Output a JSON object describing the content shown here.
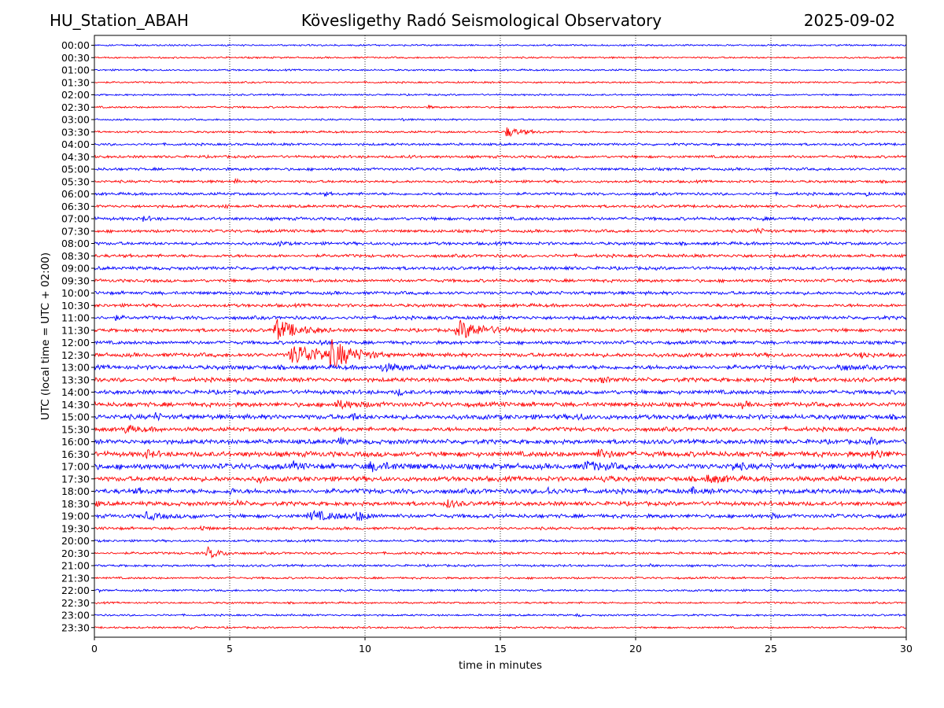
{
  "header": {
    "station": "HU_Station_ABAH",
    "observatory": "Kövesligethy Radó Seismological Observatory",
    "date": "2025-09-02"
  },
  "chart_data": {
    "type": "line",
    "xlabel": "time in minutes",
    "ylabel": "UTC (local time = UTC + 02:00)",
    "xlim": [
      0,
      30
    ],
    "xticks": [
      0,
      5,
      10,
      15,
      20,
      25,
      30
    ],
    "grid": "vertical dotted lines at each x tick",
    "colors": {
      "even_trace": "#0000ff",
      "odd_trace": "#ff0000",
      "axis": "#000000"
    },
    "traces": [
      {
        "label": "00:00",
        "color": "#0000ff",
        "noise": 1.0,
        "events": []
      },
      {
        "label": "00:30",
        "color": "#ff0000",
        "noise": 1.0,
        "events": []
      },
      {
        "label": "01:00",
        "color": "#0000ff",
        "noise": 1.0,
        "events": []
      },
      {
        "label": "01:30",
        "color": "#ff0000",
        "noise": 1.0,
        "events": []
      },
      {
        "label": "02:00",
        "color": "#0000ff",
        "noise": 1.0,
        "events": []
      },
      {
        "label": "02:30",
        "color": "#ff0000",
        "noise": 1.1,
        "events": [
          {
            "t": 12.3,
            "amp": 2,
            "dur": 0.4
          }
        ]
      },
      {
        "label": "03:00",
        "color": "#0000ff",
        "noise": 1.0,
        "events": [
          {
            "t": 11.3,
            "amp": 2,
            "dur": 0.3
          }
        ]
      },
      {
        "label": "03:30",
        "color": "#ff0000",
        "noise": 1.2,
        "events": [
          {
            "t": 15.1,
            "amp": 6,
            "dur": 1.6
          }
        ]
      },
      {
        "label": "04:00",
        "color": "#0000ff",
        "noise": 1.4,
        "events": []
      },
      {
        "label": "04:30",
        "color": "#ff0000",
        "noise": 1.5,
        "events": [
          {
            "t": 11.6,
            "amp": 3,
            "dur": 0.3
          }
        ]
      },
      {
        "label": "05:00",
        "color": "#0000ff",
        "noise": 1.6,
        "events": []
      },
      {
        "label": "05:30",
        "color": "#ff0000",
        "noise": 1.5,
        "events": [
          {
            "t": 5.2,
            "amp": 4,
            "dur": 0.2
          }
        ]
      },
      {
        "label": "06:00",
        "color": "#0000ff",
        "noise": 1.6,
        "events": [
          {
            "t": 8.5,
            "amp": 3,
            "dur": 0.3
          },
          {
            "t": 28.5,
            "amp": 3,
            "dur": 0.2
          }
        ]
      },
      {
        "label": "06:30",
        "color": "#ff0000",
        "noise": 1.6,
        "events": [
          {
            "t": 4.8,
            "amp": 3,
            "dur": 0.3
          }
        ]
      },
      {
        "label": "07:00",
        "color": "#0000ff",
        "noise": 1.8,
        "events": [
          {
            "t": 1.7,
            "amp": 3,
            "dur": 0.8
          },
          {
            "t": 24.6,
            "amp": 3,
            "dur": 0.3
          }
        ]
      },
      {
        "label": "07:30",
        "color": "#ff0000",
        "noise": 1.7,
        "events": [
          {
            "t": 24.3,
            "amp": 3,
            "dur": 1.0
          }
        ]
      },
      {
        "label": "08:00",
        "color": "#0000ff",
        "noise": 1.8,
        "events": [
          {
            "t": 6.8,
            "amp": 4,
            "dur": 0.4
          },
          {
            "t": 11.0,
            "amp": 3,
            "dur": 0.2
          }
        ]
      },
      {
        "label": "08:30",
        "color": "#ff0000",
        "noise": 1.8,
        "events": [
          {
            "t": 23.8,
            "amp": 3,
            "dur": 0.3
          }
        ]
      },
      {
        "label": "09:00",
        "color": "#0000ff",
        "noise": 1.9,
        "events": [
          {
            "t": 17.3,
            "amp": 3,
            "dur": 0.3
          }
        ]
      },
      {
        "label": "09:30",
        "color": "#ff0000",
        "noise": 1.8,
        "events": []
      },
      {
        "label": "10:00",
        "color": "#0000ff",
        "noise": 1.9,
        "events": []
      },
      {
        "label": "10:30",
        "color": "#ff0000",
        "noise": 1.9,
        "events": []
      },
      {
        "label": "11:00",
        "color": "#0000ff",
        "noise": 2.0,
        "events": [
          {
            "t": 0.7,
            "amp": 3,
            "dur": 0.5
          }
        ]
      },
      {
        "label": "11:30",
        "color": "#ff0000",
        "noise": 2.0,
        "events": [
          {
            "t": 6.55,
            "amp": 13,
            "dur": 2.2
          },
          {
            "t": 13.3,
            "amp": 11,
            "dur": 2.6
          }
        ]
      },
      {
        "label": "12:00",
        "color": "#0000ff",
        "noise": 2.0,
        "events": [
          {
            "t": 8.3,
            "amp": 3,
            "dur": 0.6
          }
        ]
      },
      {
        "label": "12:30",
        "color": "#ff0000",
        "noise": 2.3,
        "events": [
          {
            "t": 7.1,
            "amp": 12,
            "dur": 3.8
          },
          {
            "t": 8.65,
            "amp": 15,
            "dur": 1.8
          },
          {
            "t": 28.3,
            "amp": 4,
            "dur": 0.6
          }
        ]
      },
      {
        "label": "13:00",
        "color": "#0000ff",
        "noise": 2.5,
        "events": [
          {
            "t": 10.5,
            "amp": 4,
            "dur": 2.0
          },
          {
            "t": 27.4,
            "amp": 4,
            "dur": 1.0
          }
        ]
      },
      {
        "label": "13:30",
        "color": "#ff0000",
        "noise": 2.4,
        "events": [
          {
            "t": 2.5,
            "amp": 4,
            "dur": 0.3
          },
          {
            "t": 18.7,
            "amp": 4,
            "dur": 0.6
          },
          {
            "t": 25.8,
            "amp": 4,
            "dur": 0.3
          }
        ]
      },
      {
        "label": "14:00",
        "color": "#0000ff",
        "noise": 2.4,
        "events": [
          {
            "t": 11.2,
            "amp": 4,
            "dur": 0.4
          }
        ]
      },
      {
        "label": "14:30",
        "color": "#ff0000",
        "noise": 2.6,
        "events": [
          {
            "t": 8.8,
            "amp": 4,
            "dur": 2.2
          },
          {
            "t": 23.9,
            "amp": 3,
            "dur": 0.6
          }
        ]
      },
      {
        "label": "15:00",
        "color": "#0000ff",
        "noise": 2.8,
        "events": [
          {
            "t": 2.2,
            "amp": 5,
            "dur": 0.4
          },
          {
            "t": 9.5,
            "amp": 5,
            "dur": 0.4
          },
          {
            "t": 17.8,
            "amp": 4,
            "dur": 0.6
          }
        ]
      },
      {
        "label": "15:30",
        "color": "#ff0000",
        "noise": 2.4,
        "events": [
          {
            "t": 1.0,
            "amp": 4,
            "dur": 1.5
          }
        ]
      },
      {
        "label": "16:00",
        "color": "#0000ff",
        "noise": 2.6,
        "events": [
          {
            "t": 9.0,
            "amp": 7,
            "dur": 0.4
          },
          {
            "t": 28.6,
            "amp": 4,
            "dur": 0.6
          }
        ]
      },
      {
        "label": "16:30",
        "color": "#ff0000",
        "noise": 3.0,
        "events": [
          {
            "t": 1.8,
            "amp": 5,
            "dur": 0.8
          },
          {
            "t": 18.5,
            "amp": 4,
            "dur": 1.5
          },
          {
            "t": 28.7,
            "amp": 6,
            "dur": 1.0
          }
        ]
      },
      {
        "label": "17:00",
        "color": "#0000ff",
        "noise": 3.2,
        "events": [
          {
            "t": 7.3,
            "amp": 4,
            "dur": 0.6
          },
          {
            "t": 10.0,
            "amp": 4,
            "dur": 2.5
          },
          {
            "t": 18.0,
            "amp": 5,
            "dur": 2.0
          },
          {
            "t": 23.5,
            "amp": 4,
            "dur": 1.0
          }
        ]
      },
      {
        "label": "17:30",
        "color": "#ff0000",
        "noise": 2.8,
        "events": [
          {
            "t": 6.0,
            "amp": 4,
            "dur": 0.6
          },
          {
            "t": 18.8,
            "amp": 4,
            "dur": 0.6
          },
          {
            "t": 22.5,
            "amp": 4,
            "dur": 2.0
          }
        ]
      },
      {
        "label": "18:00",
        "color": "#0000ff",
        "noise": 2.8,
        "events": [
          {
            "t": 1.5,
            "amp": 3,
            "dur": 0.6
          },
          {
            "t": 5.0,
            "amp": 4,
            "dur": 0.3
          },
          {
            "t": 16.7,
            "amp": 5,
            "dur": 0.6
          },
          {
            "t": 22.0,
            "amp": 4,
            "dur": 0.5
          },
          {
            "t": 29.9,
            "amp": 4,
            "dur": 0.1
          }
        ]
      },
      {
        "label": "18:30",
        "color": "#ff0000",
        "noise": 2.4,
        "events": [
          {
            "t": 0.0,
            "amp": 4,
            "dur": 0.3
          },
          {
            "t": 5.2,
            "amp": 4,
            "dur": 0.5
          },
          {
            "t": 13.0,
            "amp": 5,
            "dur": 0.8
          },
          {
            "t": 25.7,
            "amp": 3,
            "dur": 0.4
          }
        ]
      },
      {
        "label": "19:00",
        "color": "#0000ff",
        "noise": 2.2,
        "events": [
          {
            "t": 1.8,
            "amp": 4,
            "dur": 1.5
          },
          {
            "t": 3.5,
            "amp": 4,
            "dur": 0.4
          },
          {
            "t": 7.8,
            "amp": 5,
            "dur": 3.2
          },
          {
            "t": 9.6,
            "amp": 6,
            "dur": 0.8
          },
          {
            "t": 25.0,
            "amp": 3,
            "dur": 0.4
          }
        ]
      },
      {
        "label": "19:30",
        "color": "#ff0000",
        "noise": 1.6,
        "events": [
          {
            "t": 3.9,
            "amp": 3,
            "dur": 0.6
          }
        ]
      },
      {
        "label": "20:00",
        "color": "#0000ff",
        "noise": 1.3,
        "events": []
      },
      {
        "label": "20:30",
        "color": "#ff0000",
        "noise": 1.4,
        "events": [
          {
            "t": 4.1,
            "amp": 7,
            "dur": 1.2
          }
        ]
      },
      {
        "label": "21:00",
        "color": "#0000ff",
        "noise": 1.3,
        "events": [
          {
            "t": 20.5,
            "amp": 2,
            "dur": 0.3
          }
        ]
      },
      {
        "label": "21:30",
        "color": "#ff0000",
        "noise": 1.2,
        "events": []
      },
      {
        "label": "22:00",
        "color": "#0000ff",
        "noise": 1.2,
        "events": [
          {
            "t": 0.1,
            "amp": 3,
            "dur": 0.2
          }
        ]
      },
      {
        "label": "22:30",
        "color": "#ff0000",
        "noise": 1.1,
        "events": []
      },
      {
        "label": "23:00",
        "color": "#0000ff",
        "noise": 1.1,
        "events": [
          {
            "t": 17.8,
            "amp": 2,
            "dur": 0.3
          }
        ]
      },
      {
        "label": "23:30",
        "color": "#ff0000",
        "noise": 1.1,
        "events": [
          {
            "t": 3.5,
            "amp": 2,
            "dur": 0.4
          }
        ]
      }
    ]
  }
}
